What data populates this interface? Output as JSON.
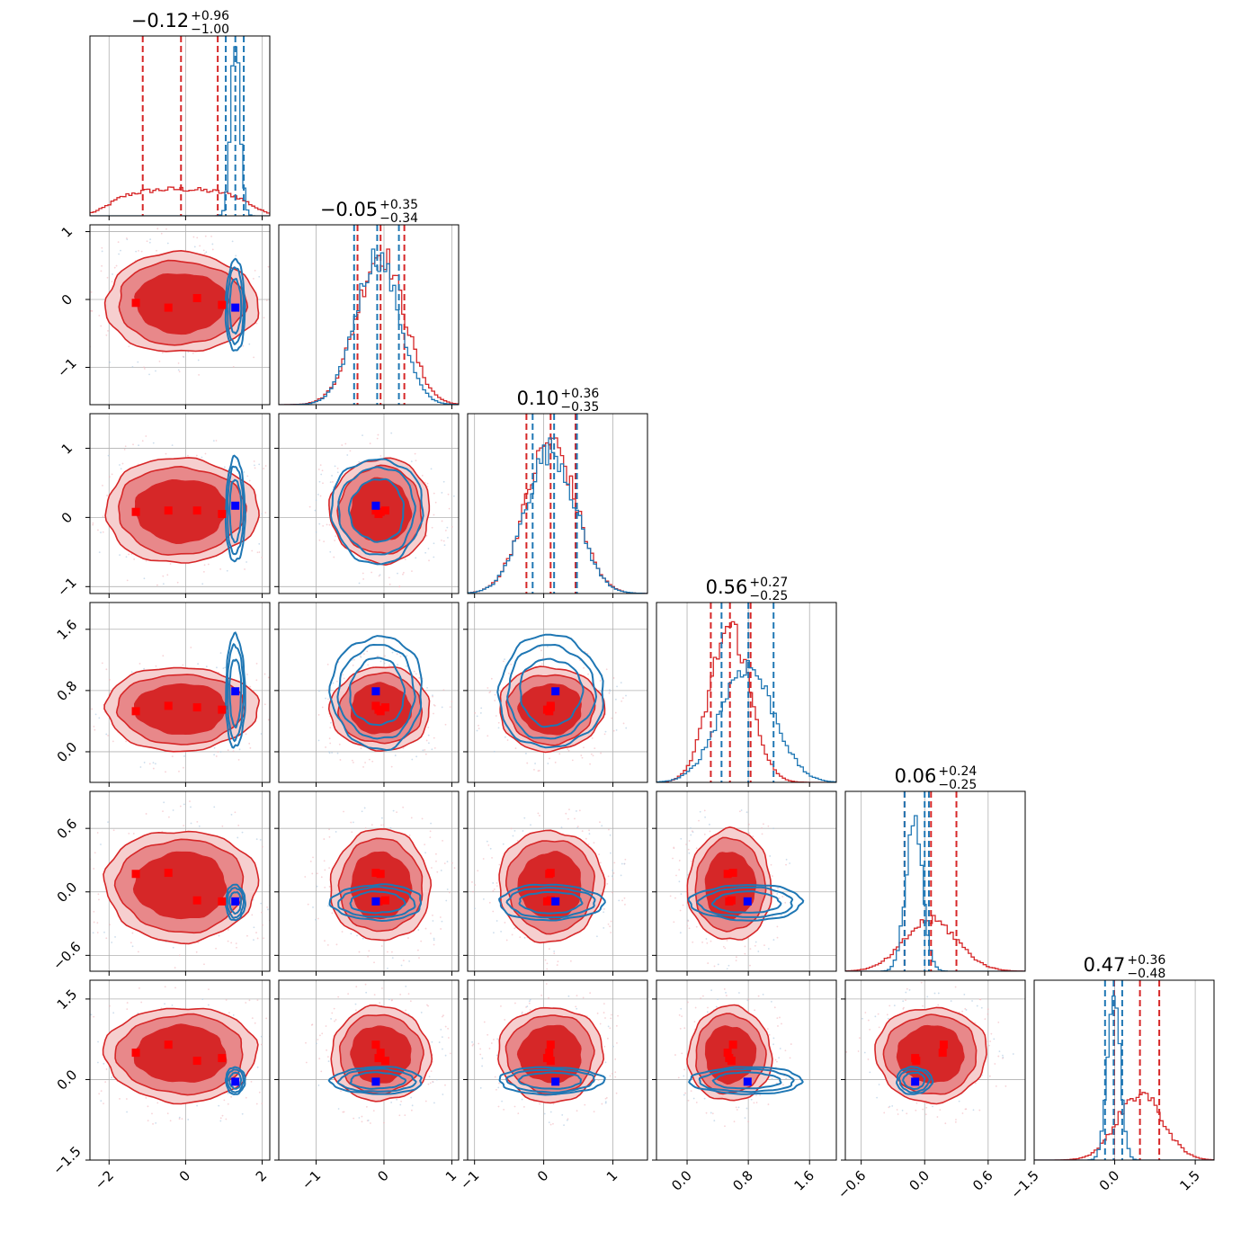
{
  "colors": {
    "red": "#d62728",
    "blue": "#1f77b4",
    "red_mid": "#e8888a",
    "red_light": "#f6cfcf",
    "grid": "#b0b0b0",
    "marker_blue": "#0000ff",
    "marker_red": "#ff0000"
  },
  "chart_data": {
    "type": "corner",
    "dims": [
      {
        "range": [
          -2.5,
          2.2
        ],
        "ticks": [
          -2,
          0,
          2
        ],
        "tick_labels": [
          "−2",
          "0",
          "2"
        ],
        "title": {
          "main": "−0.12",
          "plus": "+0.96",
          "minus": "−1.00"
        },
        "red": {
          "mean": -0.12,
          "sd": 1.0,
          "shape": "flat",
          "q": [
            -1.12,
            -0.12,
            0.84
          ]
        },
        "blue": {
          "mean": 1.3,
          "sd": 0.12,
          "q": [
            1.05,
            1.3,
            1.52
          ]
        },
        "markers_red": [
          -1.3,
          -0.45,
          0.3,
          0.95
        ],
        "marker_blue": 1.3
      },
      {
        "range": [
          -1.55,
          1.1
        ],
        "ticks": [
          -1,
          0,
          1
        ],
        "tick_labels": [
          "−1",
          "0",
          "1"
        ],
        "title": {
          "main": "−0.05",
          "plus": "+0.35",
          "minus": "−0.34"
        },
        "red": {
          "mean": -0.05,
          "sd": 0.35,
          "q": [
            -0.39,
            -0.05,
            0.3
          ]
        },
        "blue": {
          "mean": -0.1,
          "sd": 0.32,
          "q": [
            -0.44,
            -0.1,
            0.22
          ]
        },
        "markers_red": [
          -0.05,
          -0.12,
          0.02,
          -0.08
        ],
        "marker_blue": -0.12
      },
      {
        "range": [
          -1.1,
          1.5
        ],
        "ticks": [
          -1,
          0,
          1
        ],
        "tick_labels": [
          "−1",
          "0",
          "1"
        ],
        "title": {
          "main": "0.10",
          "plus": "+0.36",
          "minus": "−0.35"
        },
        "red": {
          "mean": 0.1,
          "sd": 0.36,
          "q": [
            -0.25,
            0.1,
            0.46
          ]
        },
        "blue": {
          "mean": 0.1,
          "sd": 0.36,
          "q": [
            -0.16,
            0.15,
            0.48
          ]
        },
        "markers_red": [
          0.08,
          0.1,
          0.1,
          0.05
        ],
        "marker_blue": 0.17
      },
      {
        "range": [
          -0.4,
          1.95
        ],
        "ticks": [
          0.0,
          0.8,
          1.6
        ],
        "tick_labels": [
          "0.0",
          "0.8",
          "1.6"
        ],
        "title": {
          "main": "0.56",
          "plus": "+0.27",
          "minus": "−0.25"
        },
        "red": {
          "mean": 0.56,
          "sd": 0.26,
          "q": [
            0.31,
            0.56,
            0.83
          ]
        },
        "blue": {
          "mean": 0.78,
          "sd": 0.35,
          "q": [
            0.45,
            0.8,
            1.13
          ]
        },
        "markers_red": [
          0.53,
          0.6,
          0.58,
          0.55
        ],
        "marker_blue": 0.79
      },
      {
        "range": [
          -0.75,
          0.95
        ],
        "ticks": [
          -0.6,
          0.0,
          0.6
        ],
        "tick_labels": [
          "−0.6",
          "0.0",
          "0.6"
        ],
        "title": {
          "main": "0.06",
          "plus": "+0.24",
          "minus": "−0.25"
        },
        "red": {
          "mean": 0.06,
          "sd": 0.25,
          "q": [
            -0.19,
            0.06,
            0.3
          ]
        },
        "blue": {
          "mean": -0.1,
          "sd": 0.08,
          "q": [
            -0.19,
            0.0,
            0.04
          ]
        },
        "markers_red": [
          0.17,
          0.18,
          -0.08,
          -0.09
        ],
        "marker_blue": -0.09
      },
      {
        "range": [
          -1.5,
          1.85
        ],
        "ticks": [
          -1.5,
          0.0,
          1.5
        ],
        "tick_labels": [
          "−1.5",
          "0.0",
          "1.5"
        ],
        "title": {
          "main": "0.47",
          "plus": "+0.36",
          "minus": "−0.48"
        },
        "red": {
          "mean": 0.47,
          "sd": 0.42,
          "q": [
            -0.01,
            0.47,
            0.83
          ]
        },
        "blue": {
          "mean": -0.02,
          "sd": 0.12,
          "q": [
            -0.18,
            -0.02,
            0.14
          ]
        },
        "markers_red": [
          0.5,
          0.65,
          0.35,
          0.4
        ],
        "marker_blue": -0.04
      }
    ]
  }
}
